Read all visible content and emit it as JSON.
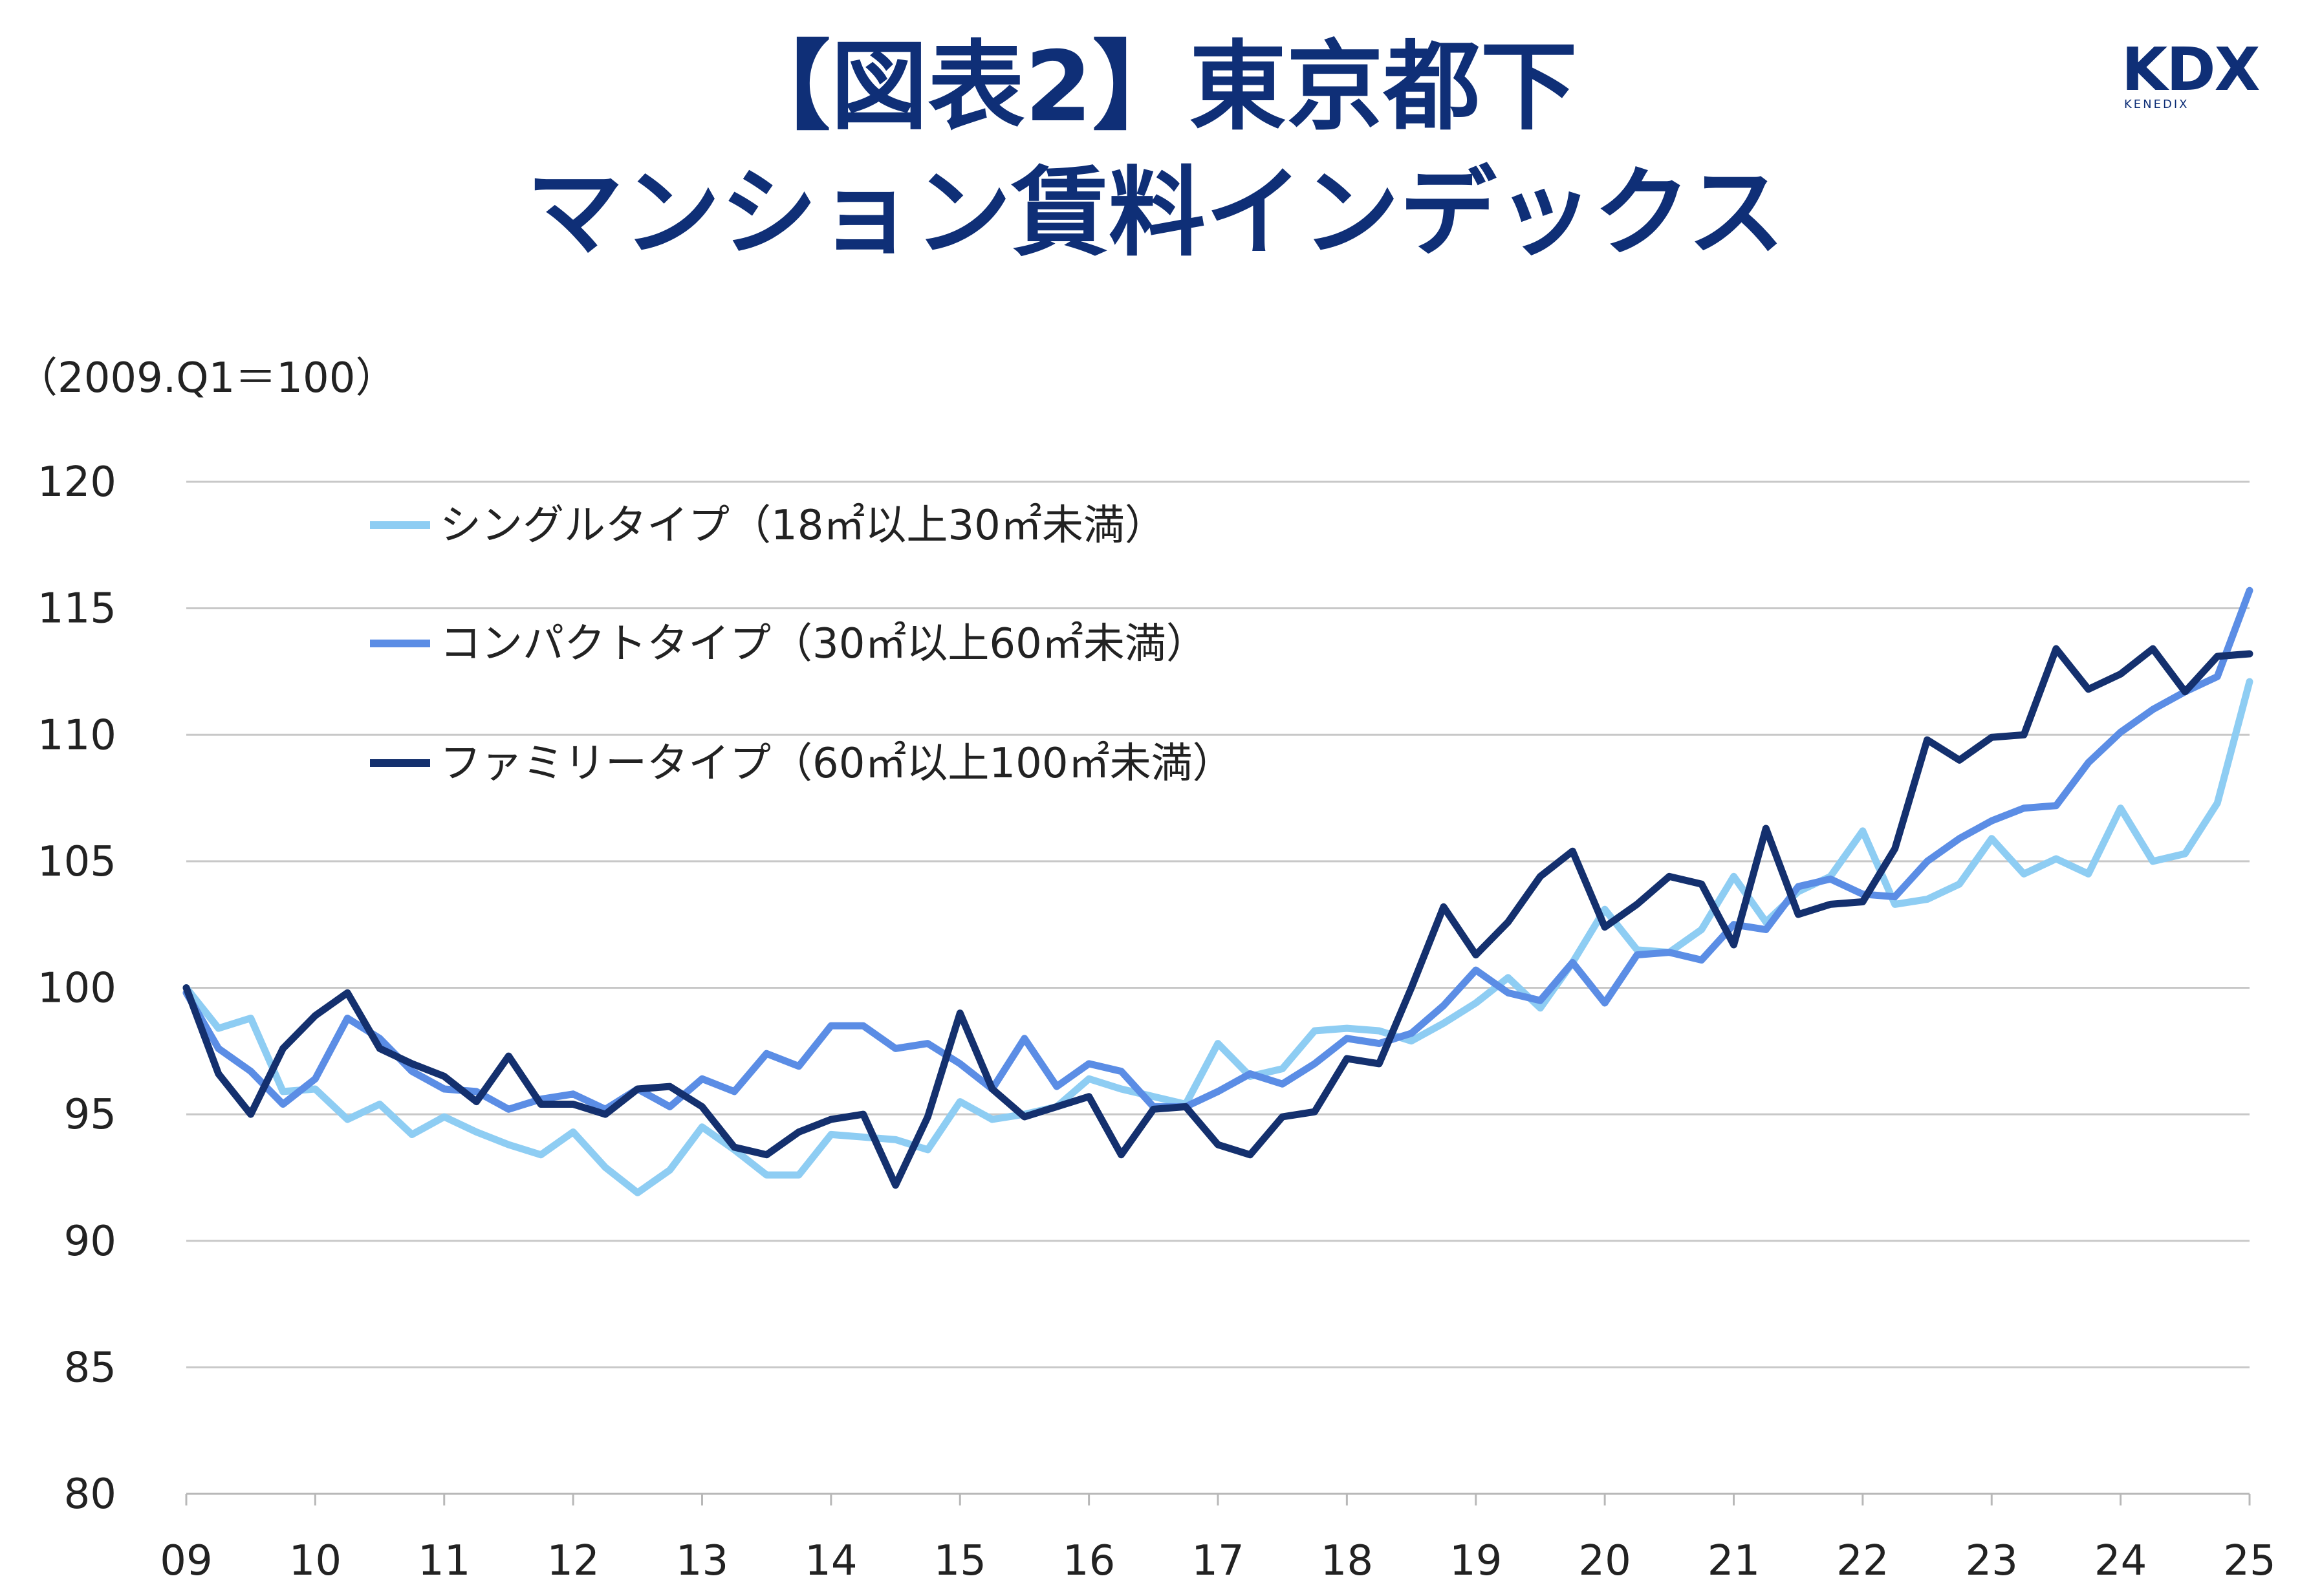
{
  "title": {
    "line1": "【図表2】東京都下",
    "line2": "マンション賃料インデックス"
  },
  "logo": {
    "main": "KDX",
    "sub": "KENEDIX"
  },
  "unit_label": "（2009.Q1＝100）",
  "colors": {
    "title": "#0f2f77",
    "single": "#8ecdf3",
    "compact": "#5b8de5",
    "family": "#14306e",
    "grid": "#c8c8c8"
  },
  "chart_data": {
    "type": "line",
    "ylim": [
      80,
      120
    ],
    "y_ticks": [
      "80",
      "85",
      "90",
      "95",
      "100",
      "105",
      "110",
      "115",
      "120"
    ],
    "x_ticks": [
      "09",
      "10",
      "11",
      "12",
      "13",
      "14",
      "15",
      "16",
      "17",
      "18",
      "19",
      "20",
      "21",
      "22",
      "23",
      "24",
      "25"
    ],
    "x_range": [
      2009.0,
      2025.0
    ],
    "grid": "horizontal",
    "legend_position": "top-left",
    "series": [
      {
        "name": "シングルタイプ（18㎡以上30㎡未満）",
        "color": "#8ecdf3",
        "values": [
          100,
          98.4,
          98.8,
          95.9,
          96.0,
          94.8,
          95.4,
          94.2,
          94.9,
          94.3,
          93.8,
          93.4,
          94.3,
          92.9,
          91.9,
          92.8,
          94.5,
          93.6,
          92.6,
          92.6,
          94.2,
          94.1,
          94.0,
          93.6,
          95.5,
          94.8,
          95.0,
          95.3,
          96.4,
          96.0,
          95.7,
          95.4,
          97.8,
          96.5,
          96.8,
          98.3,
          98.4,
          98.3,
          97.9,
          98.6,
          99.4,
          100.4,
          99.2,
          101.0,
          103.1,
          101.5,
          101.4,
          102.3,
          104.4,
          102.6,
          103.8,
          104.4,
          106.2,
          103.3,
          103.5,
          104.1,
          105.9,
          104.5,
          105.1,
          104.5,
          107.1,
          105.0,
          105.3,
          107.3,
          112.1
        ]
      },
      {
        "name": "コンパクトタイプ（30㎡以上60㎡未満）",
        "color": "#5b8de5",
        "values": [
          99.8,
          97.6,
          96.7,
          95.4,
          96.4,
          98.8,
          98.0,
          96.7,
          96.0,
          95.9,
          95.2,
          95.6,
          95.8,
          95.2,
          96.0,
          95.3,
          96.4,
          95.9,
          97.4,
          96.9,
          98.5,
          98.5,
          97.6,
          97.8,
          97.0,
          96.0,
          98.0,
          96.1,
          97.0,
          96.7,
          95.3,
          95.3,
          95.9,
          96.6,
          96.2,
          97.0,
          98.0,
          97.8,
          98.2,
          99.3,
          100.7,
          99.8,
          99.5,
          101.0,
          99.4,
          101.3,
          101.4,
          101.1,
          102.5,
          102.3,
          104.0,
          104.3,
          103.7,
          103.6,
          105.0,
          105.9,
          106.6,
          107.1,
          107.2,
          108.9,
          110.1,
          111.0,
          111.7,
          112.3,
          115.7
        ]
      },
      {
        "name": "ファミリータイプ（60㎡以上100㎡未満）",
        "color": "#14306e",
        "values": [
          100,
          96.6,
          95.0,
          97.6,
          98.9,
          99.8,
          97.6,
          97.0,
          96.5,
          95.5,
          97.3,
          95.4,
          95.4,
          95.0,
          96.0,
          96.1,
          95.3,
          93.7,
          93.4,
          94.3,
          94.8,
          95.0,
          92.2,
          94.9,
          99.0,
          96.0,
          94.9,
          95.3,
          95.7,
          93.4,
          95.2,
          95.3,
          93.8,
          93.4,
          94.9,
          95.1,
          97.2,
          97.0,
          100.0,
          103.2,
          101.3,
          102.6,
          104.4,
          105.4,
          102.4,
          103.3,
          104.4,
          104.1,
          101.7,
          106.3,
          102.9,
          103.3,
          103.4,
          105.5,
          109.8,
          109.0,
          109.9,
          110.0,
          113.4,
          111.8,
          112.4,
          113.4,
          111.7,
          113.1,
          113.2
        ]
      }
    ]
  }
}
